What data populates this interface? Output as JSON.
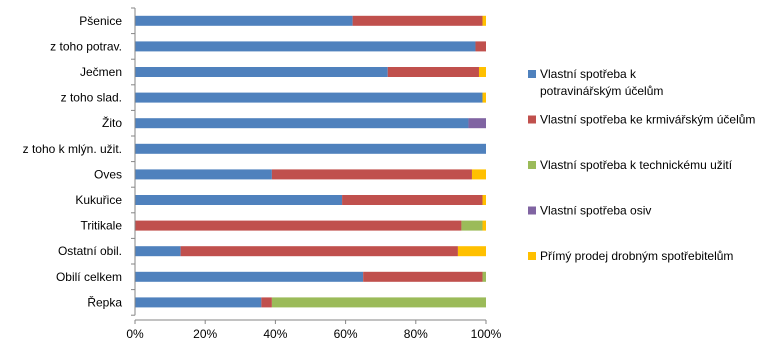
{
  "chart_data": {
    "type": "bar",
    "orientation": "horizontal",
    "stacked": "percent",
    "categories": [
      "Pšenice",
      "z toho potrav.",
      "Ječmen",
      "z toho slad.",
      "Žito",
      "z toho k mlýn. užit.",
      "Oves",
      "Kukuřice",
      "Tritikale",
      "Ostatní obil.",
      "Obilí celkem",
      "Řepka"
    ],
    "series": [
      {
        "name": "Vlastní spotřeba k potravinářským účelům",
        "color": "#4F81BD",
        "values": [
          62,
          97,
          72,
          99,
          95,
          100,
          39,
          59,
          0,
          13,
          65,
          36
        ]
      },
      {
        "name": "Vlastní spotřeba ke krmivářským účelům",
        "color": "#C0504D",
        "values": [
          37,
          3,
          26,
          0,
          0,
          0,
          57,
          40,
          93,
          79,
          34,
          3
        ]
      },
      {
        "name": "Vlastní spotřeba k technickému užití",
        "color": "#9BBB59",
        "values": [
          0,
          0,
          0,
          0,
          0,
          0,
          0,
          0,
          6,
          0,
          1,
          61
        ]
      },
      {
        "name": "Vlastní spotřeba osiv",
        "color": "#8064A2",
        "values": [
          0,
          0,
          0,
          0,
          5,
          0,
          0,
          0,
          0,
          0,
          0,
          0
        ]
      },
      {
        "name": "Přímý prodej drobným spotřebitelům",
        "color": "#FFC000",
        "values": [
          1,
          0,
          2,
          1,
          0,
          0,
          4,
          1,
          1,
          8,
          0,
          0
        ]
      }
    ],
    "xticks": [
      "0%",
      "20%",
      "40%",
      "60%",
      "80%",
      "100%"
    ],
    "xlim": [
      0,
      100
    ],
    "grid": false,
    "legend": "right"
  }
}
